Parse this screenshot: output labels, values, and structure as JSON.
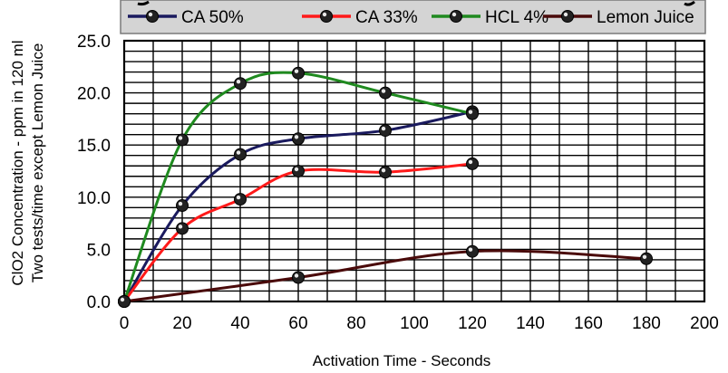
{
  "chart_data": {
    "type": "line",
    "xlabel": "Activation Time - Seconds",
    "ylabel": [
      "ClO2 Concentration - ppm in 120 ml",
      "Two tests/time except Lemon Juice"
    ],
    "xlim": [
      0,
      200
    ],
    "ylim": [
      0,
      25
    ],
    "x_ticks": [
      0,
      20,
      40,
      60,
      80,
      100,
      120,
      140,
      160,
      180,
      200
    ],
    "y_ticks": [
      0,
      5,
      10,
      15,
      20,
      25
    ],
    "x_tick_labels": [
      "0",
      "20",
      "40",
      "60",
      "80",
      "100",
      "120",
      "140",
      "160",
      "180",
      "200"
    ],
    "y_tick_labels": [
      "0.0",
      "5.0",
      "10.0",
      "15.0",
      "20.0",
      "25.0"
    ],
    "grid": true,
    "legend_position": "top",
    "series": [
      {
        "name": "CA 50%",
        "color": "#1a1a5e",
        "points": [
          [
            0,
            0
          ],
          [
            20,
            9.2
          ],
          [
            40,
            14.1
          ],
          [
            60,
            15.6
          ],
          [
            90,
            16.4
          ],
          [
            120,
            18.2
          ]
        ]
      },
      {
        "name": "CA 33%",
        "color": "#ff1a1a",
        "points": [
          [
            0,
            0
          ],
          [
            20,
            7.0
          ],
          [
            40,
            9.8
          ],
          [
            60,
            12.5
          ],
          [
            90,
            12.4
          ],
          [
            120,
            13.2
          ]
        ]
      },
      {
        "name": "HCL 4%",
        "color": "#1f8a1f",
        "points": [
          [
            0,
            0
          ],
          [
            20,
            15.5
          ],
          [
            40,
            20.9
          ],
          [
            60,
            21.9
          ],
          [
            90,
            20.0
          ],
          [
            120,
            18.0
          ]
        ]
      },
      {
        "name": "Lemon Juice",
        "color": "#4a0a0a",
        "points": [
          [
            0,
            0
          ],
          [
            60,
            2.3
          ],
          [
            120,
            4.8
          ],
          [
            180,
            4.1
          ]
        ]
      }
    ]
  }
}
